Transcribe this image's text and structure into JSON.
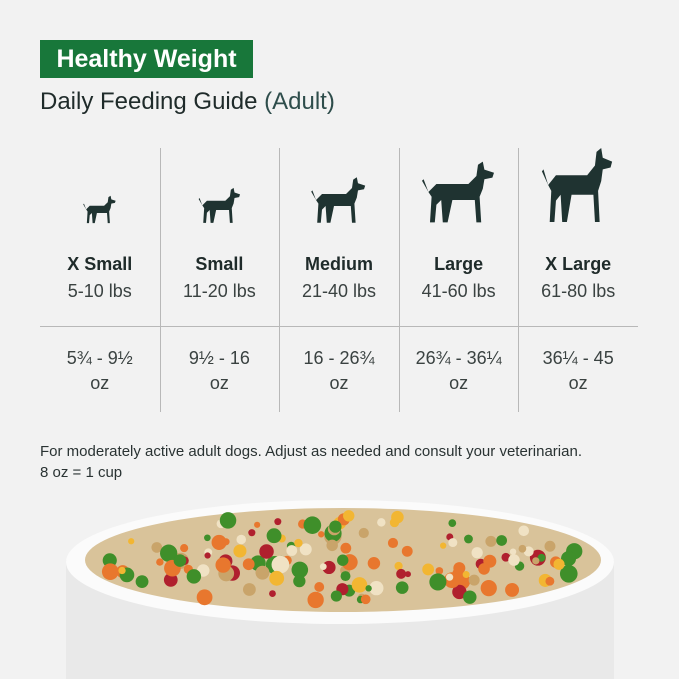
{
  "badge": "Healthy Weight",
  "title": "Daily Feeding Guide",
  "title_suffix": "(Adult)",
  "columns": [
    {
      "size": "X Small",
      "weight": "5-10 lbs",
      "amount": "5¾ - 9½",
      "unit": "oz"
    },
    {
      "size": "Small",
      "weight": "11-20 lbs",
      "amount": "9½ - 16",
      "unit": "oz"
    },
    {
      "size": "Medium",
      "weight": "21-40 lbs",
      "amount": "16 - 26¾",
      "unit": "oz"
    },
    {
      "size": "Large",
      "weight": "41-60 lbs",
      "amount": "26¾ - 36¼",
      "unit": "oz"
    },
    {
      "size": "X Large",
      "weight": "61-80 lbs",
      "amount": "36¼ - 45",
      "unit": "oz"
    }
  ],
  "note": "For moderately active adult dogs. Adjust as needed and consult your veterinarian.",
  "note2": "8 oz = 1 cup"
}
